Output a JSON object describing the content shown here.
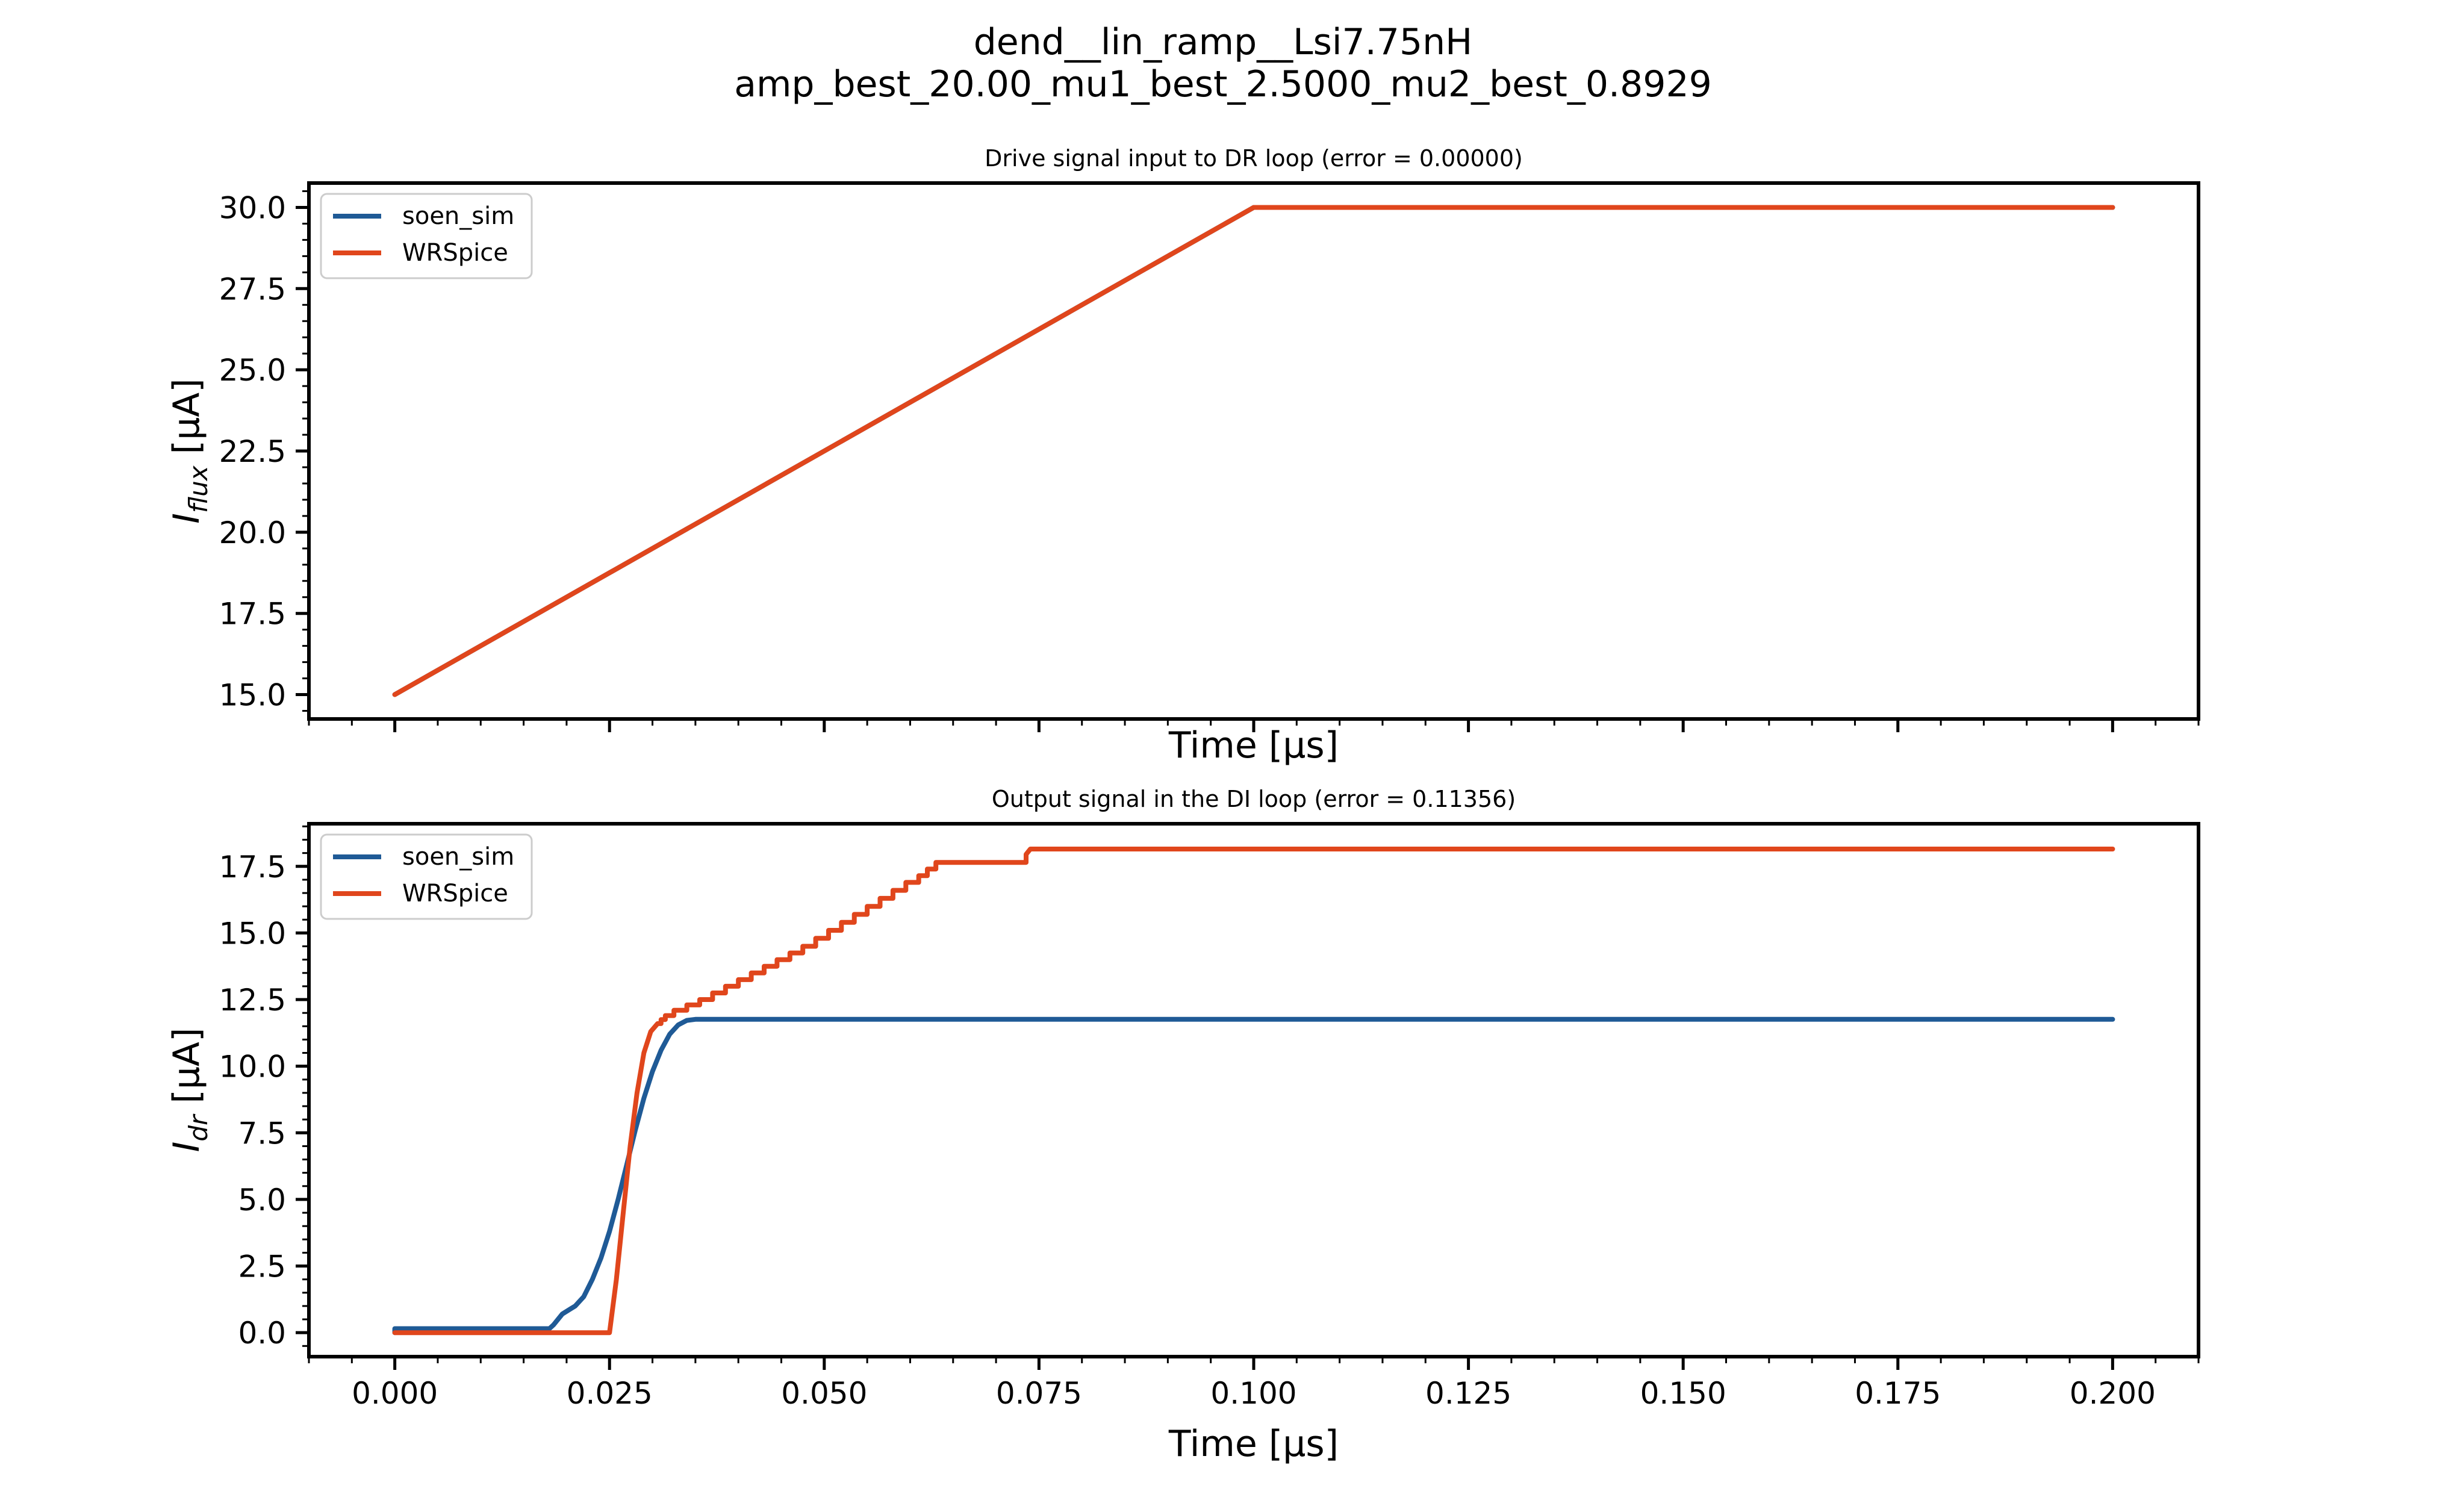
{
  "figure": {
    "title_line1": "dend__lin_ramp__Lsi7.75nH",
    "title_line2": "amp_best_20.00_mu1_best_2.5000_mu2_best_0.8929"
  },
  "colors": {
    "soen_sim": "#1f5a96",
    "WRSpice": "#e0461c"
  },
  "chart_data": [
    {
      "type": "line",
      "title": "Drive signal input to DR loop (error = 0.00000)",
      "xlabel": "Time [μs]",
      "ylabel_main": "I",
      "ylabel_sub": "flux",
      "ylabel_unit": " [μA]",
      "xlim": [
        -0.01,
        0.21
      ],
      "ylim": [
        14.25,
        30.75
      ],
      "yticks": [
        "15.0",
        "17.5",
        "20.0",
        "22.5",
        "25.0",
        "27.5",
        "30.0"
      ],
      "xticks": [],
      "legend_location": "upper-left",
      "series": [
        {
          "name": "soen_sim",
          "color": "#1f5a96",
          "x": [
            0.0,
            0.1,
            0.2
          ],
          "y": [
            15.0,
            30.0,
            30.0
          ]
        },
        {
          "name": "WRSpice",
          "color": "#e0461c",
          "x": [
            0.0,
            0.1,
            0.2
          ],
          "y": [
            15.0,
            30.0,
            30.0
          ]
        }
      ]
    },
    {
      "type": "line",
      "title": "Output signal in the DI loop (error = 0.11356)",
      "xlabel": "Time [μs]",
      "ylabel_main": "I",
      "ylabel_sub": "dr",
      "ylabel_unit": " [μA]",
      "xlim": [
        -0.01,
        0.21
      ],
      "ylim": [
        -0.9,
        19.1
      ],
      "yticks": [
        "0.0",
        "2.5",
        "5.0",
        "7.5",
        "10.0",
        "12.5",
        "15.0",
        "17.5"
      ],
      "xticks": [
        "0.000",
        "0.025",
        "0.050",
        "0.075",
        "0.100",
        "0.125",
        "0.150",
        "0.175",
        "0.200"
      ],
      "legend_location": "upper-left",
      "series": [
        {
          "name": "soen_sim",
          "color": "#1f5a96",
          "x": [
            0.0,
            0.0,
            0.018,
            0.0185,
            0.0195,
            0.0205,
            0.021,
            0.022,
            0.023,
            0.024,
            0.025,
            0.026,
            0.027,
            0.028,
            0.029,
            0.03,
            0.031,
            0.032,
            0.033,
            0.034,
            0.035,
            0.036,
            0.2
          ],
          "y": [
            0.0,
            0.15,
            0.15,
            0.3,
            0.7,
            0.9,
            1.0,
            1.35,
            2.0,
            2.8,
            3.8,
            5.0,
            6.3,
            7.6,
            8.8,
            9.8,
            10.6,
            11.2,
            11.55,
            11.72,
            11.76,
            11.76,
            11.76
          ]
        },
        {
          "name": "WRSpice",
          "color": "#e0461c",
          "x": [
            0.0,
            0.025,
            0.0258,
            0.0266,
            0.0274,
            0.0282,
            0.029,
            0.0298,
            0.0306,
            0.031,
            0.031,
            0.0315,
            0.0315,
            0.0325,
            0.0325,
            0.034,
            0.034,
            0.0355,
            0.0355,
            0.037,
            0.037,
            0.0385,
            0.0385,
            0.04,
            0.04,
            0.0415,
            0.0415,
            0.043,
            0.043,
            0.0445,
            0.0445,
            0.046,
            0.046,
            0.0475,
            0.0475,
            0.049,
            0.049,
            0.0505,
            0.0505,
            0.052,
            0.052,
            0.0535,
            0.0535,
            0.055,
            0.055,
            0.0565,
            0.0565,
            0.058,
            0.058,
            0.0595,
            0.0595,
            0.061,
            0.061,
            0.062,
            0.062,
            0.063,
            0.063,
            0.0735,
            0.0735,
            0.074,
            0.2
          ],
          "y": [
            0.0,
            0.0,
            2.0,
            4.5,
            7.0,
            9.0,
            10.5,
            11.3,
            11.6,
            11.6,
            11.75,
            11.75,
            11.9,
            11.9,
            12.1,
            12.1,
            12.3,
            12.3,
            12.5,
            12.5,
            12.75,
            12.75,
            13.0,
            13.0,
            13.25,
            13.25,
            13.5,
            13.5,
            13.75,
            13.75,
            14.0,
            14.0,
            14.25,
            14.25,
            14.5,
            14.5,
            14.8,
            14.8,
            15.1,
            15.1,
            15.4,
            15.4,
            15.7,
            15.7,
            16.0,
            16.0,
            16.3,
            16.3,
            16.6,
            16.6,
            16.9,
            16.9,
            17.15,
            17.15,
            17.4,
            17.4,
            17.65,
            17.65,
            17.95,
            18.15,
            18.15
          ]
        }
      ]
    }
  ]
}
